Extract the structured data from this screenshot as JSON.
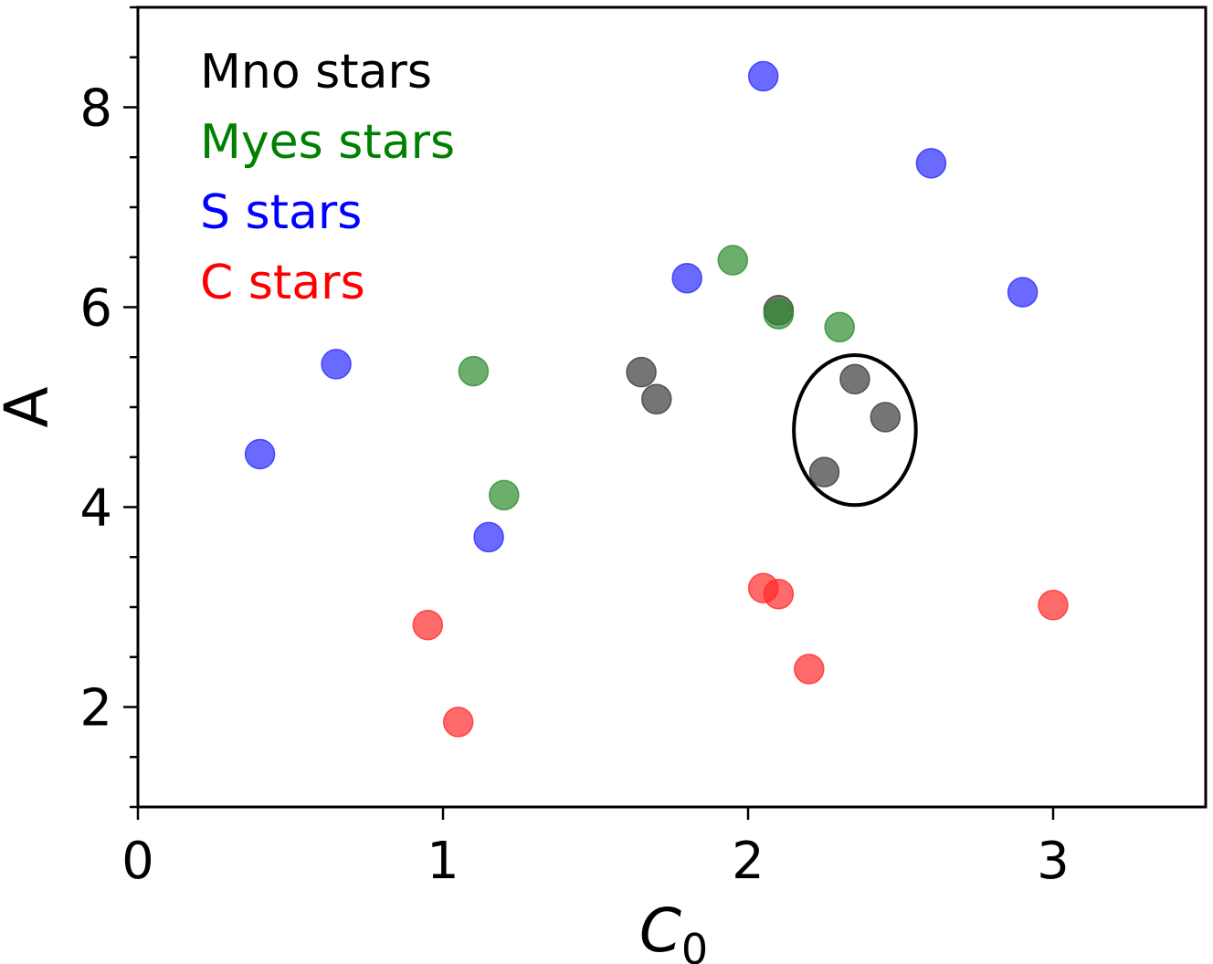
{
  "chart_data": {
    "type": "scatter",
    "title": "",
    "xlabel": "C",
    "xlabel_sub": "0",
    "ylabel": "A",
    "xlim": [
      0,
      3.5
    ],
    "ylim": [
      1,
      9
    ],
    "xticks": [
      0,
      1,
      2,
      3
    ],
    "yticks": [
      2,
      4,
      6,
      8
    ],
    "y_minor_step": 0.5,
    "legend_position": "top-left",
    "series": [
      {
        "name": "Mno stars",
        "label": "Mno stars",
        "color": "#3a3a3a",
        "text_color": "#000000",
        "points": [
          {
            "x": 1.65,
            "y": 5.35
          },
          {
            "x": 1.7,
            "y": 5.08
          },
          {
            "x": 2.1,
            "y": 5.97
          },
          {
            "x": 2.35,
            "y": 5.28
          },
          {
            "x": 2.45,
            "y": 4.9
          },
          {
            "x": 2.25,
            "y": 4.35
          }
        ]
      },
      {
        "name": "Myes stars",
        "label": "Myes stars",
        "color": "#2e8b2e",
        "text_color": "#008000",
        "points": [
          {
            "x": 1.1,
            "y": 5.36
          },
          {
            "x": 1.2,
            "y": 4.12
          },
          {
            "x": 1.95,
            "y": 6.47
          },
          {
            "x": 2.1,
            "y": 5.93
          },
          {
            "x": 2.3,
            "y": 5.8
          }
        ]
      },
      {
        "name": "S stars",
        "label": "S stars",
        "color": "#2b2bff",
        "text_color": "#0000ff",
        "points": [
          {
            "x": 0.4,
            "y": 4.53
          },
          {
            "x": 0.65,
            "y": 5.43
          },
          {
            "x": 1.15,
            "y": 3.7
          },
          {
            "x": 1.8,
            "y": 6.29
          },
          {
            "x": 2.05,
            "y": 8.31
          },
          {
            "x": 2.6,
            "y": 7.44
          },
          {
            "x": 2.9,
            "y": 6.15
          }
        ]
      },
      {
        "name": "C stars",
        "label": "C stars",
        "color": "#ff2b2b",
        "text_color": "#ff0000",
        "points": [
          {
            "x": 0.95,
            "y": 2.82
          },
          {
            "x": 1.05,
            "y": 1.85
          },
          {
            "x": 2.05,
            "y": 3.19
          },
          {
            "x": 2.1,
            "y": 3.13
          },
          {
            "x": 2.2,
            "y": 2.38
          },
          {
            "x": 3.0,
            "y": 3.02
          }
        ]
      }
    ],
    "annotations": [
      {
        "type": "ellipse",
        "cx": 2.35,
        "cy": 4.77,
        "rx": 0.2,
        "ry": 0.75,
        "color": "#000000"
      }
    ]
  }
}
